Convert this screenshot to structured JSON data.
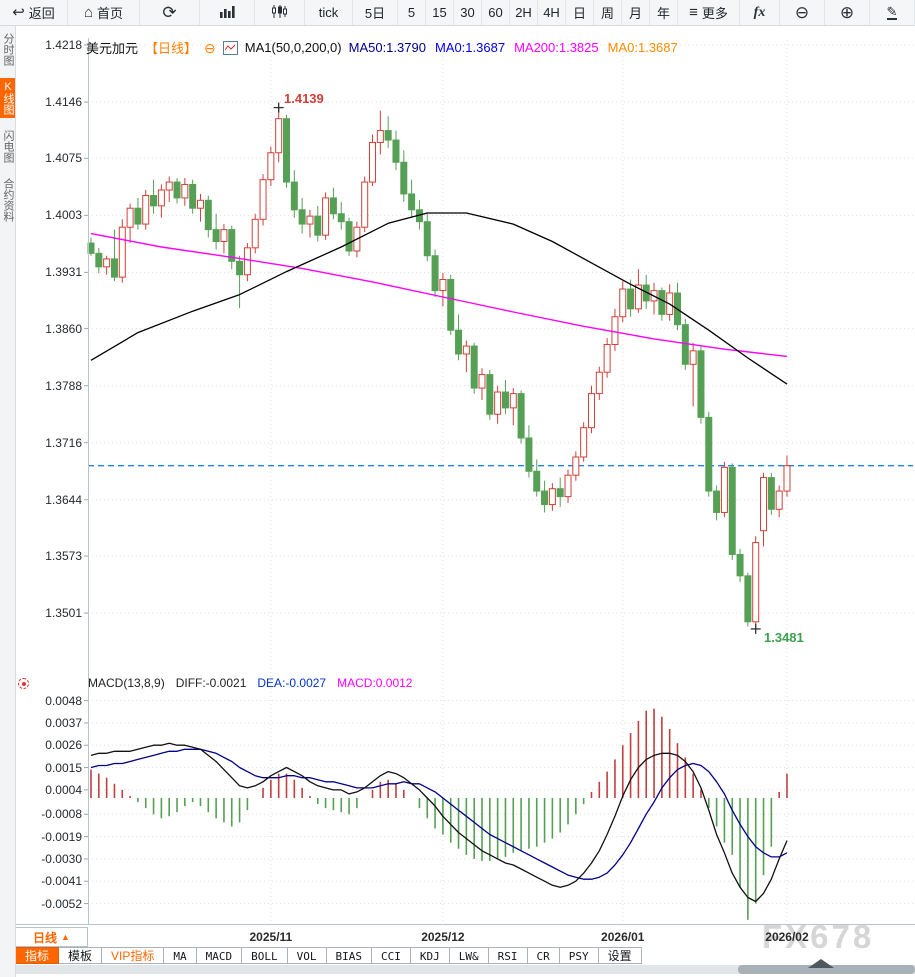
{
  "toolbar": {
    "items": [
      {
        "name": "back",
        "icon": "back",
        "label": "返回"
      },
      {
        "name": "home",
        "icon": "home",
        "label": "首页"
      },
      {
        "name": "refresh",
        "icon": "refresh",
        "label": ""
      },
      {
        "name": "bar-chart",
        "icon": "bar-chart",
        "label": ""
      },
      {
        "name": "candlestick",
        "icon": "candlestick",
        "label": ""
      },
      {
        "name": "tick",
        "label": "tick"
      },
      {
        "name": "5d",
        "label": "5日"
      },
      {
        "name": "m5",
        "label": "5"
      },
      {
        "name": "m15",
        "label": "15"
      },
      {
        "name": "m30",
        "label": "30"
      },
      {
        "name": "m60",
        "label": "60"
      },
      {
        "name": "2h",
        "label": "2H"
      },
      {
        "name": "4h",
        "label": "4H"
      },
      {
        "name": "day",
        "label": "日"
      },
      {
        "name": "week",
        "label": "周"
      },
      {
        "name": "month",
        "label": "月"
      },
      {
        "name": "year",
        "label": "年"
      },
      {
        "name": "more",
        "icon": "menu",
        "label": "更多"
      },
      {
        "name": "fx",
        "icon": "fx",
        "label": ""
      },
      {
        "name": "zoom-out",
        "icon": "zoom-out",
        "label": ""
      },
      {
        "name": "zoom-in",
        "icon": "zoom-in",
        "label": ""
      },
      {
        "name": "draw",
        "icon": "pencil",
        "label": ""
      }
    ]
  },
  "sidebar": {
    "items": [
      {
        "label": "分时图",
        "active": false
      },
      {
        "label": "K线图",
        "active": true
      },
      {
        "label": "闪电图",
        "active": false
      },
      {
        "label": "合约资料",
        "active": false
      }
    ]
  },
  "chart_header": {
    "symbol": "美元加元",
    "period_tag": "【日线】",
    "ma_settings": "MA1(50,0,200,0)",
    "ma_values": [
      {
        "label": "MA50:1.3790",
        "color": "#00008b"
      },
      {
        "label": "MA0:1.3687",
        "color": "#0000ee"
      },
      {
        "label": "MA200:1.3825",
        "color": "#ff00ff"
      },
      {
        "label": "MA0:1.3687",
        "color": "#ff8c00"
      }
    ]
  },
  "macd_header": {
    "title": "MACD(13,8,9)",
    "values": [
      {
        "label": "DIFF:-0.0021",
        "color": "#222222"
      },
      {
        "label": "DEA:-0.0027",
        "color": "#0033cc"
      },
      {
        "label": "MACD:0.0012",
        "color": "#ff00ff"
      }
    ]
  },
  "period_box": {
    "label": "日线",
    "caret": "▲"
  },
  "bottom_tabs": [
    {
      "label": "指标",
      "state": "active"
    },
    {
      "label": "模板"
    },
    {
      "label": "VIP指标",
      "state": "vip"
    },
    {
      "label": "MA",
      "mono": true
    },
    {
      "label": "MACD",
      "mono": true
    },
    {
      "label": "BOLL",
      "mono": true
    },
    {
      "label": "VOL",
      "mono": true
    },
    {
      "label": "BIAS",
      "mono": true
    },
    {
      "label": "CCI",
      "mono": true
    },
    {
      "label": "KDJ",
      "mono": true
    },
    {
      "label": "LW&",
      "mono": true
    },
    {
      "label": "RSI",
      "mono": true
    },
    {
      "label": "CR",
      "mono": true
    },
    {
      "label": "PSY",
      "mono": true
    },
    {
      "label": "设置"
    }
  ],
  "watermark": "FX678",
  "colors": {
    "accent_orange": "#ff6600",
    "up": "#d04038",
    "down": "#55a055",
    "ma50": "#000000",
    "ma200": "#ff00ff",
    "current_price_line": "#1e86e8",
    "grid": "#e9d8d8",
    "axis": "#b9c4cc",
    "tick": "#9aa7b0",
    "macd_diff": "#111111",
    "macd_dea": "#00008b",
    "hist_pos": "#bf4040",
    "hist_neg": "#55a055"
  },
  "chart_data": {
    "type": "candlestick",
    "symbol": "美元加元",
    "period": "日线",
    "price_axis_ticks": [
      1.4218,
      1.4146,
      1.4075,
      1.4003,
      1.3931,
      1.386,
      1.3788,
      1.3716,
      1.3644,
      1.3573,
      1.3501
    ],
    "x_axis_labels": [
      "2025/11",
      "2025/12",
      "2026/01",
      "2026/02"
    ],
    "month_start_indices": [
      23,
      45,
      68,
      89
    ],
    "high_marker": {
      "index": 24,
      "price": 1.4139
    },
    "low_marker": {
      "index": 85,
      "price": 1.3481
    },
    "current_price": 1.3687,
    "ohlc": [
      [
        1.3968,
        1.3975,
        1.3952,
        1.3955
      ],
      [
        1.3955,
        1.3962,
        1.393,
        1.3938
      ],
      [
        1.3938,
        1.3952,
        1.3928,
        1.3948
      ],
      [
        1.3948,
        1.3985,
        1.392,
        1.3925
      ],
      [
        1.3925,
        1.3998,
        1.3918,
        1.3988
      ],
      [
        1.3988,
        1.4018,
        1.3968,
        1.4012
      ],
      [
        1.4012,
        1.4025,
        1.3985,
        1.3992
      ],
      [
        1.3992,
        1.4035,
        1.3985,
        1.4028
      ],
      [
        1.4028,
        1.4048,
        1.4005,
        1.4015
      ],
      [
        1.4015,
        1.4042,
        1.4,
        1.4035
      ],
      [
        1.4035,
        1.4052,
        1.402,
        1.4045
      ],
      [
        1.4045,
        1.405,
        1.4018,
        1.4025
      ],
      [
        1.4025,
        1.405,
        1.4015,
        1.4042
      ],
      [
        1.4042,
        1.4048,
        1.4005,
        1.4012
      ],
      [
        1.4012,
        1.403,
        1.3995,
        1.4022
      ],
      [
        1.4022,
        1.4028,
        1.3975,
        1.3985
      ],
      [
        1.3985,
        1.4005,
        1.396,
        1.397
      ],
      [
        1.397,
        1.3992,
        1.3955,
        1.3985
      ],
      [
        1.3985,
        1.399,
        1.3935,
        1.3945
      ],
      [
        1.3945,
        1.3952,
        1.3886,
        1.3928
      ],
      [
        1.3928,
        1.3968,
        1.392,
        1.3962
      ],
      [
        1.3962,
        1.4005,
        1.3955,
        1.3998
      ],
      [
        1.3998,
        1.4055,
        1.399,
        1.4048
      ],
      [
        1.4048,
        1.409,
        1.404,
        1.4082
      ],
      [
        1.4082,
        1.4139,
        1.407,
        1.4125
      ],
      [
        1.4125,
        1.413,
        1.4038,
        1.4045
      ],
      [
        1.4045,
        1.406,
        1.4,
        1.401
      ],
      [
        1.401,
        1.4025,
        1.398,
        1.3992
      ],
      [
        1.3992,
        1.401,
        1.3975,
        1.4002
      ],
      [
        1.4002,
        1.4015,
        1.397,
        1.3978
      ],
      [
        1.3978,
        1.4032,
        1.3972,
        1.4025
      ],
      [
        1.4025,
        1.4038,
        1.3998,
        1.4005
      ],
      [
        1.4005,
        1.402,
        1.3985,
        1.3995
      ],
      [
        1.3995,
        1.4,
        1.3952,
        1.3958
      ],
      [
        1.3958,
        1.3995,
        1.395,
        1.3988
      ],
      [
        1.3988,
        1.4052,
        1.3982,
        1.4045
      ],
      [
        1.4045,
        1.4105,
        1.404,
        1.4095
      ],
      [
        1.4095,
        1.4135,
        1.408,
        1.411
      ],
      [
        1.411,
        1.4128,
        1.4088,
        1.4098
      ],
      [
        1.4098,
        1.411,
        1.406,
        1.407
      ],
      [
        1.407,
        1.4085,
        1.402,
        1.403
      ],
      [
        1.403,
        1.4048,
        1.4,
        1.401
      ],
      [
        1.401,
        1.4022,
        1.3985,
        1.3995
      ],
      [
        1.3995,
        1.4005,
        1.3945,
        1.3952
      ],
      [
        1.3952,
        1.396,
        1.39,
        1.3908
      ],
      [
        1.3908,
        1.393,
        1.3888,
        1.3922
      ],
      [
        1.3922,
        1.3928,
        1.3852,
        1.3858
      ],
      [
        1.3858,
        1.3878,
        1.382,
        1.3828
      ],
      [
        1.3828,
        1.3845,
        1.3805,
        1.3838
      ],
      [
        1.3838,
        1.3842,
        1.3778,
        1.3785
      ],
      [
        1.3785,
        1.381,
        1.377,
        1.3802
      ],
      [
        1.3802,
        1.3808,
        1.3745,
        1.3752
      ],
      [
        1.3752,
        1.3788,
        1.374,
        1.378
      ],
      [
        1.378,
        1.3795,
        1.3752,
        1.376
      ],
      [
        1.376,
        1.3785,
        1.3738,
        1.3778
      ],
      [
        1.3778,
        1.3782,
        1.3715,
        1.3722
      ],
      [
        1.3722,
        1.3738,
        1.3672,
        1.368
      ],
      [
        1.368,
        1.3695,
        1.3648,
        1.3655
      ],
      [
        1.3655,
        1.3668,
        1.3628,
        1.3638
      ],
      [
        1.3638,
        1.3665,
        1.363,
        1.3658
      ],
      [
        1.3658,
        1.3672,
        1.3635,
        1.3648
      ],
      [
        1.3648,
        1.3682,
        1.364,
        1.3675
      ],
      [
        1.3675,
        1.3705,
        1.3668,
        1.3698
      ],
      [
        1.3698,
        1.3742,
        1.3692,
        1.3735
      ],
      [
        1.3735,
        1.3788,
        1.3728,
        1.3778
      ],
      [
        1.3778,
        1.3812,
        1.377,
        1.3805
      ],
      [
        1.3805,
        1.3848,
        1.3798,
        1.384
      ],
      [
        1.384,
        1.3885,
        1.3832,
        1.3875
      ],
      [
        1.3875,
        1.392,
        1.3868,
        1.391
      ],
      [
        1.391,
        1.3922,
        1.3875,
        1.3885
      ],
      [
        1.3885,
        1.3935,
        1.388,
        1.3915
      ],
      [
        1.3915,
        1.3928,
        1.3885,
        1.3895
      ],
      [
        1.3895,
        1.3918,
        1.3878,
        1.3908
      ],
      [
        1.3908,
        1.3912,
        1.387,
        1.3878
      ],
      [
        1.3878,
        1.3916,
        1.387,
        1.3905
      ],
      [
        1.3905,
        1.3918,
        1.3858,
        1.3865
      ],
      [
        1.3865,
        1.3872,
        1.3808,
        1.3815
      ],
      [
        1.3815,
        1.3842,
        1.3762,
        1.3832
      ],
      [
        1.3832,
        1.3838,
        1.374,
        1.3748
      ],
      [
        1.3748,
        1.3755,
        1.3648,
        1.3655
      ],
      [
        1.3655,
        1.3662,
        1.3618,
        1.3628
      ],
      [
        1.3628,
        1.3692,
        1.3622,
        1.3685
      ],
      [
        1.3685,
        1.369,
        1.3568,
        1.3575
      ],
      [
        1.3575,
        1.3582,
        1.354,
        1.3548
      ],
      [
        1.3548,
        1.3552,
        1.3484,
        1.349
      ],
      [
        1.349,
        1.3598,
        1.3481,
        1.359
      ],
      [
        1.3605,
        1.3678,
        1.3585,
        1.3672
      ],
      [
        1.3672,
        1.3678,
        1.3625,
        1.3632
      ],
      [
        1.3632,
        1.3662,
        1.3622,
        1.3655
      ],
      [
        1.3655,
        1.37,
        1.3648,
        1.3687
      ]
    ],
    "ma50_points": [
      [
        0,
        1.382
      ],
      [
        6,
        1.3855
      ],
      [
        13,
        1.3882
      ],
      [
        19,
        1.3903
      ],
      [
        25,
        1.3932
      ],
      [
        32,
        1.3963
      ],
      [
        38,
        1.3993
      ],
      [
        43,
        1.4006
      ],
      [
        48,
        1.4006
      ],
      [
        54,
        1.3992
      ],
      [
        59,
        1.397
      ],
      [
        64,
        1.3943
      ],
      [
        69,
        1.3916
      ],
      [
        74,
        1.3891
      ],
      [
        79,
        1.3858
      ],
      [
        84,
        1.3823
      ],
      [
        89,
        1.379
      ]
    ],
    "ma200_points": [
      [
        0,
        1.398
      ],
      [
        9,
        1.3963
      ],
      [
        18,
        1.395
      ],
      [
        27,
        1.3936
      ],
      [
        36,
        1.3919
      ],
      [
        45,
        1.39
      ],
      [
        54,
        1.3881
      ],
      [
        63,
        1.3863
      ],
      [
        72,
        1.3847
      ],
      [
        81,
        1.3834
      ],
      [
        89,
        1.3825
      ]
    ],
    "macd": {
      "params": "13,8,9",
      "unit": 0.0001,
      "axis_ticks": [
        0.0048,
        0.0037,
        0.0026,
        0.0015,
        0.0004,
        -0.0008,
        -0.0019,
        -0.003,
        -0.0041,
        -0.0052
      ],
      "diff": [
        21,
        22,
        22,
        23,
        23,
        23,
        24,
        25,
        26,
        26,
        27,
        26,
        26,
        25,
        24,
        21,
        18,
        14,
        10,
        6,
        5,
        6,
        8,
        11,
        13,
        15,
        13,
        11,
        8,
        6,
        5,
        4,
        4,
        2,
        3,
        5,
        8,
        11,
        13,
        12,
        10,
        7,
        4,
        0,
        -4,
        -9,
        -13,
        -17,
        -20,
        -23,
        -26,
        -28,
        -30,
        -32,
        -33,
        -35,
        -37,
        -39,
        -41,
        -43,
        -44,
        -43,
        -41,
        -37,
        -32,
        -26,
        -18,
        -9,
        1,
        9,
        15,
        19,
        21,
        22,
        22,
        21,
        18,
        13,
        5,
        -6,
        -18,
        -27,
        -37,
        -44,
        -49,
        -51,
        -47,
        -40,
        -30,
        -21
      ],
      "dea": [
        15,
        16,
        16,
        17,
        17,
        18,
        19,
        20,
        21,
        22,
        23,
        23,
        24,
        24,
        24,
        23,
        22,
        20,
        18,
        15,
        13,
        11,
        10,
        10,
        10,
        11,
        11,
        10,
        10,
        9,
        8,
        8,
        7,
        6,
        5,
        5,
        5,
        6,
        7,
        7,
        8,
        7,
        7,
        5,
        3,
        0,
        -3,
        -6,
        -9,
        -12,
        -15,
        -18,
        -20,
        -22,
        -24,
        -26,
        -28,
        -30,
        -32,
        -34,
        -36,
        -38,
        -39,
        -40,
        -40,
        -39,
        -37,
        -33,
        -28,
        -22,
        -15,
        -8,
        -2,
        5,
        10,
        14,
        16,
        17,
        16,
        13,
        8,
        2,
        -6,
        -13,
        -19,
        -24,
        -27,
        -29,
        -29,
        -27
      ],
      "hist": [
        14,
        12,
        10,
        7,
        4,
        1,
        -2,
        -5,
        -8,
        -10,
        -9,
        -7,
        -4,
        -2,
        -4,
        -7,
        -10,
        -12,
        -14,
        -12,
        -6,
        0,
        5,
        9,
        12,
        12,
        9,
        5,
        1,
        -3,
        -5,
        -6,
        -7,
        -8,
        -5,
        0,
        4,
        8,
        9,
        7,
        4,
        0,
        -5,
        -10,
        -15,
        -18,
        -22,
        -25,
        -28,
        -30,
        -31,
        -31,
        -30,
        -29,
        -27,
        -26,
        -25,
        -24,
        -22,
        -20,
        -17,
        -13,
        -8,
        -3,
        3,
        8,
        13,
        19,
        26,
        32,
        38,
        43,
        44,
        40,
        34,
        27,
        20,
        12,
        4,
        -5,
        -14,
        -22,
        -28,
        -44,
        -60,
        -52,
        -38,
        -24,
        3,
        12
      ]
    }
  }
}
